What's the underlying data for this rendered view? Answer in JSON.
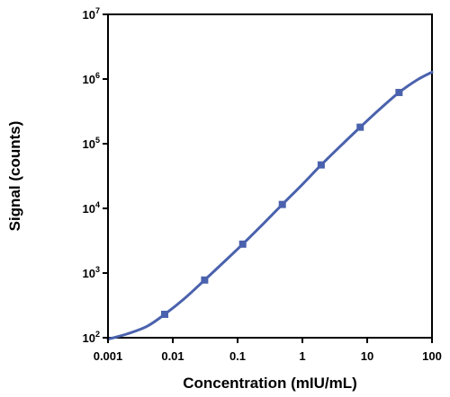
{
  "chart_data": {
    "type": "scatter",
    "xlabel": "Concentration (mIU/mL)",
    "ylabel": "Signal (counts)",
    "x_scale": "log",
    "y_scale": "log",
    "xlim": [
      0.001,
      100
    ],
    "ylim": [
      100,
      10000000
    ],
    "x_ticks": [
      {
        "value": 0.001,
        "label": "0.001"
      },
      {
        "value": 0.01,
        "label": "0.01"
      },
      {
        "value": 0.1,
        "label": "0.1"
      },
      {
        "value": 1,
        "label": "1"
      },
      {
        "value": 10,
        "label": "10"
      },
      {
        "value": 100,
        "label": "100"
      }
    ],
    "y_ticks": [
      {
        "value": 100,
        "base": "10",
        "exp": "2"
      },
      {
        "value": 1000,
        "base": "10",
        "exp": "3"
      },
      {
        "value": 10000,
        "base": "10",
        "exp": "4"
      },
      {
        "value": 100000,
        "base": "10",
        "exp": "5"
      },
      {
        "value": 1000000,
        "base": "10",
        "exp": "6"
      },
      {
        "value": 10000000,
        "base": "10",
        "exp": "7"
      }
    ],
    "points": [
      {
        "x": 0.0075,
        "y": 230
      },
      {
        "x": 0.031,
        "y": 780
      },
      {
        "x": 0.12,
        "y": 2800
      },
      {
        "x": 0.49,
        "y": 11500
      },
      {
        "x": 1.95,
        "y": 47000
      },
      {
        "x": 7.8,
        "y": 180000
      },
      {
        "x": 31,
        "y": 620000
      }
    ],
    "fit_curve": [
      {
        "x": 0.001,
        "y": 95
      },
      {
        "x": 0.002,
        "y": 115
      },
      {
        "x": 0.004,
        "y": 150
      },
      {
        "x": 0.0075,
        "y": 230
      },
      {
        "x": 0.015,
        "y": 400
      },
      {
        "x": 0.031,
        "y": 780
      },
      {
        "x": 0.06,
        "y": 1450
      },
      {
        "x": 0.12,
        "y": 2800
      },
      {
        "x": 0.25,
        "y": 5800
      },
      {
        "x": 0.49,
        "y": 11500
      },
      {
        "x": 1,
        "y": 23500
      },
      {
        "x": 1.95,
        "y": 47000
      },
      {
        "x": 4,
        "y": 95000
      },
      {
        "x": 7.8,
        "y": 180000
      },
      {
        "x": 15,
        "y": 330000
      },
      {
        "x": 31,
        "y": 620000
      },
      {
        "x": 60,
        "y": 980000
      },
      {
        "x": 100,
        "y": 1280000
      }
    ],
    "series_color": "#4a62ad",
    "grid": false,
    "legend": "none"
  }
}
